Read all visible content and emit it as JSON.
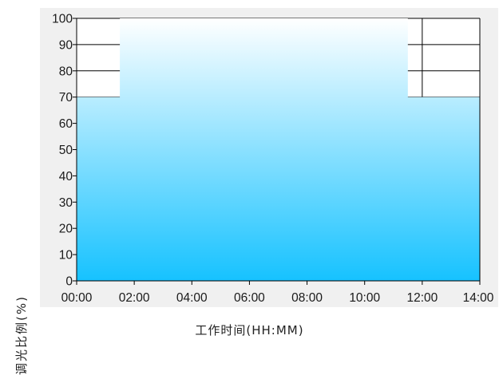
{
  "chart_data": {
    "type": "area",
    "xlabel": "工作时间(HH:MM)",
    "ylabel": "调光比例(%)",
    "x_ticks": [
      "00:00",
      "02:00",
      "04:00",
      "06:00",
      "08:00",
      "10:00",
      "12:00",
      "14:00"
    ],
    "y_ticks": [
      "0",
      "10",
      "20",
      "30",
      "40",
      "50",
      "60",
      "70",
      "80",
      "90",
      "100"
    ],
    "xlim": [
      0,
      14
    ],
    "ylim": [
      0,
      100
    ],
    "series": [
      {
        "x": [
          0,
          1.5,
          1.5,
          11.5,
          11.5,
          14
        ],
        "values": [
          70,
          70,
          100,
          100,
          70,
          70
        ]
      }
    ],
    "fill_gradient": {
      "top": "#ffffff",
      "bottom": "#16c2ff"
    },
    "plot_background": "#ffffff",
    "outer_background": "#f0f0f0",
    "grid": "horizontal lines at 10-unit steps, visible only in the unfilled region"
  }
}
